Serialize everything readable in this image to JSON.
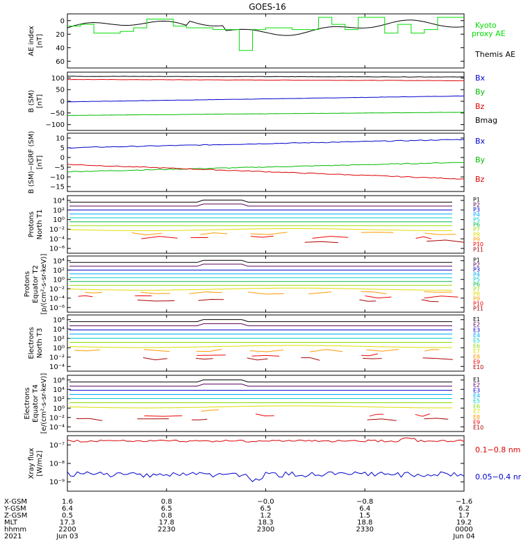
{
  "title": "GOES-16",
  "chart_data": [
    {
      "id": "ae",
      "type": "line",
      "ylabel": [
        "AE index",
        "[nT]"
      ],
      "ylim": [
        0,
        62
      ],
      "yticks": [
        "0",
        "20",
        "40",
        "60"
      ],
      "series": [
        {
          "name": "Kyoto",
          "color": "#00dd00"
        },
        {
          "name": "proxy AE",
          "color": "#00dd00"
        },
        {
          "name": "Themis AE",
          "color": "#000000"
        }
      ]
    },
    {
      "id": "bsm",
      "type": "line",
      "ylabel": [
        "B (SM)",
        "[nT]"
      ],
      "ylim": [
        -120,
        120
      ],
      "yticks": [
        "100",
        "50",
        "0",
        "−50",
        "−100"
      ],
      "series": [
        {
          "name": "Bx",
          "color": "#0000cc",
          "start": -2,
          "end": 22
        },
        {
          "name": "By",
          "color": "#00bb00",
          "start": -58,
          "end": -45
        },
        {
          "name": "Bz",
          "color": "#dd0000",
          "start": 90,
          "end": 85
        },
        {
          "name": "Bmag",
          "color": "#000000",
          "start": 103,
          "end": 100
        }
      ]
    },
    {
      "id": "bigrf",
      "type": "line",
      "ylabel": [
        "B (SM)−IGRF (SM)",
        "[nT]"
      ],
      "ylim": [
        -17,
        11
      ],
      "yticks": [
        "10",
        "5",
        "0",
        "−5",
        "−10",
        "−15"
      ],
      "series": [
        {
          "name": "Bx",
          "color": "#0000cc",
          "start": 4,
          "end": 8
        },
        {
          "name": "By",
          "color": "#00bb00",
          "start": -7.5,
          "end": -3
        },
        {
          "name": "Bz",
          "color": "#dd0000",
          "start": -4,
          "end": -11
        }
      ]
    },
    {
      "id": "pt1",
      "type": "line",
      "ylabel": [
        "Protons",
        "North T1"
      ],
      "yticks": [
        "10⁴",
        "10²",
        "10⁰",
        "10⁻²",
        "10⁻⁴",
        "10⁻⁶"
      ],
      "channels": [
        "P1",
        "P2",
        "P3",
        "P4",
        "P5",
        "P6",
        "P7",
        "P8",
        "P9",
        "P10",
        "P11"
      ]
    },
    {
      "id": "pt2",
      "type": "line",
      "ylabel": [
        "Protons",
        "Equator T2",
        "[p/(cm²-s-sr-keV)]"
      ],
      "yticks": [
        "10⁴",
        "10²",
        "10⁰",
        "10⁻²",
        "10⁻⁴",
        "10⁻⁶"
      ],
      "channels": [
        "P1",
        "P2",
        "P3",
        "P4",
        "P5",
        "P6",
        "P7",
        "P8",
        "P9",
        "P10",
        "P11"
      ]
    },
    {
      "id": "et3",
      "type": "line",
      "ylabel": [
        "Electrons",
        "North T3"
      ],
      "yticks": [
        "10⁶",
        "10⁴",
        "10²",
        "10⁰",
        "10⁻²",
        "10⁻⁴"
      ],
      "channels": [
        "E1",
        "E2",
        "E3",
        "E4",
        "E5",
        "E6",
        "E7",
        "E8",
        "E9",
        "E10"
      ]
    },
    {
      "id": "et4",
      "type": "line",
      "ylabel": [
        "Electrons",
        "Equator T4",
        "[e/(cm²-s-sr-keV)]"
      ],
      "yticks": [
        "10⁶",
        "10⁴",
        "10²",
        "10⁰",
        "10⁻²",
        "10⁻⁴"
      ],
      "channels": [
        "E1",
        "E2",
        "E3",
        "E4",
        "E5",
        "E6",
        "E7",
        "E8",
        "E9",
        "E10"
      ]
    },
    {
      "id": "xray",
      "type": "line",
      "ylabel": [
        "Xray flux",
        "[W/m2]"
      ],
      "yticks": [
        "10⁻⁷",
        "10⁻⁸",
        "10⁻⁹"
      ],
      "series": [
        {
          "name": "0.1−0.8 nm",
          "color": "#dd0000"
        },
        {
          "name": "0.05−0.4 nm",
          "color": "#0000cc"
        }
      ]
    }
  ],
  "channel_colors": {
    "P1": "#000000",
    "P2": "#5a005a",
    "P3": "#0000cc",
    "P4": "#00aaff",
    "P5": "#00cccc",
    "P6": "#00bb44",
    "P7": "#99dd00",
    "P8": "#dddd00",
    "P9": "#ff9900",
    "P10": "#ee0000",
    "P11": "#aa0000",
    "E1": "#000000",
    "E2": "#5a005a",
    "E3": "#0000cc",
    "E4": "#00aaff",
    "E5": "#00cccc",
    "E6": "#88dd00",
    "E7": "#dddd00",
    "E8": "#ff9900",
    "E9": "#ee0000",
    "E10": "#aa0000"
  },
  "xaxis": {
    "row_labels": [
      "X-GSM",
      "Y-GSM",
      "Z-GSM",
      "MLT",
      "hhmm",
      "2021"
    ],
    "ticks": [
      {
        "values": [
          "1.6",
          "6.4",
          "0.5",
          "17.3",
          "2200",
          "Jun 03"
        ]
      },
      {
        "values": [
          "0.8",
          "6.5",
          "0.8",
          "17.8",
          "2230",
          ""
        ]
      },
      {
        "values": [
          "−0.0",
          "6.5",
          "1.2",
          "18.3",
          "2300",
          ""
        ]
      },
      {
        "values": [
          "−0.8",
          "6.4",
          "1.5",
          "18.8",
          "2330",
          ""
        ]
      },
      {
        "values": [
          "−1.6",
          "6.2",
          "1.7",
          "19.2",
          "0000",
          "Jun 04"
        ]
      }
    ]
  }
}
